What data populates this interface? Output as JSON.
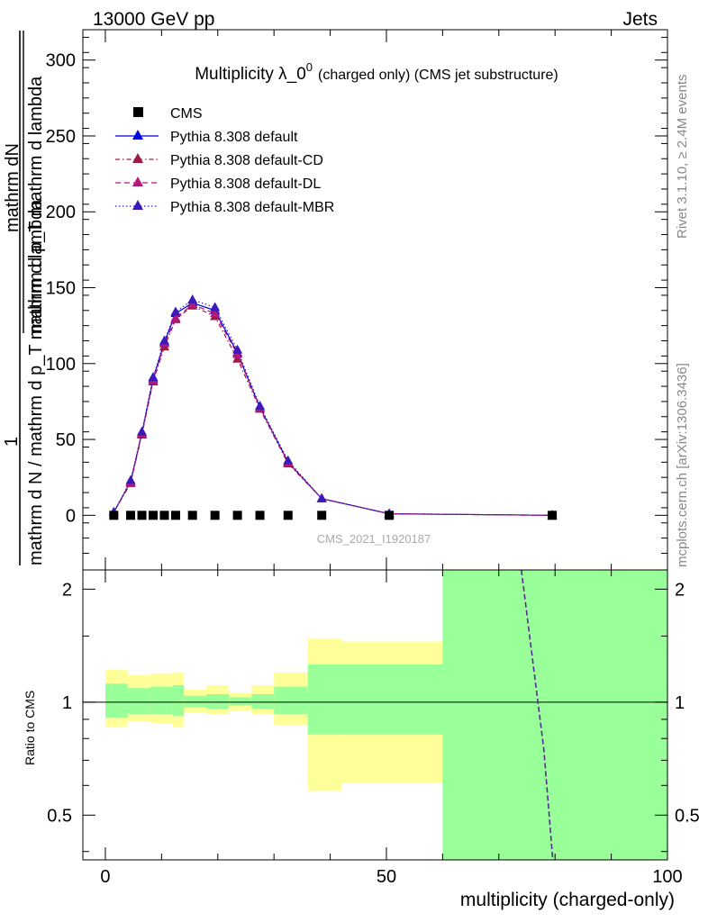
{
  "header": {
    "left": "13000 GeV pp",
    "right": "Jets"
  },
  "side_labels": {
    "rivet": "Rivet 3.1.10, ≥ 2.4M events",
    "mcplots": "mcplots.cern.ch [arXiv:1306.3436]"
  },
  "chart_data": [
    {
      "type": "line",
      "title_main": "Multiplicity λ_0",
      "title_sup": "0",
      "title_sub": "(charged only) (CMS jet substructure)",
      "ylabel_line1": "mathrm dN",
      "ylabel_line2": "mathrm d p_T mathrm d lambda",
      "ylabel_frac_num": "1",
      "ylabel_frac_den": "mathrm d N / mathrm d p_T mathrm d lambda",
      "watermark": "CMS_2021_I1920187",
      "xlim": [
        -4,
        100
      ],
      "ylim": [
        -36,
        320
      ],
      "x_ticks": [
        0,
        50,
        100
      ],
      "y_ticks": [
        0,
        50,
        100,
        150,
        200,
        250,
        300
      ],
      "legend": {
        "position": "top-left",
        "entries": [
          {
            "name": "CMS",
            "color": "#000000",
            "marker": "square",
            "dash": "none"
          },
          {
            "name": "Pythia 8.308 default",
            "color": "#0000e0",
            "marker": "triangle",
            "dash": "solid"
          },
          {
            "name": "Pythia 8.308 default-CD",
            "color": "#9b1b48",
            "marker": "triangle",
            "dash": "dashdot"
          },
          {
            "name": "Pythia 8.308 default-DL",
            "color": "#b5177a",
            "marker": "triangle",
            "dash": "dashed"
          },
          {
            "name": "Pythia 8.308 default-MBR",
            "color": "#3a1ab8",
            "marker": "triangle",
            "dash": "dotted"
          }
        ]
      },
      "cms": {
        "x": [
          1.5,
          4.5,
          6.5,
          8.5,
          10.5,
          12.5,
          15.5,
          19.5,
          23.5,
          27.5,
          32.5,
          38.5,
          50.5,
          79.5
        ],
        "y": [
          0,
          0,
          0,
          0,
          0,
          0,
          0,
          0,
          0,
          0,
          0,
          0,
          0,
          0
        ]
      },
      "series": [
        {
          "name": "Pythia 8.308 default",
          "x": [
            1.5,
            4.5,
            6.5,
            8.5,
            10.5,
            12.5,
            15.5,
            19.5,
            23.5,
            27.5,
            32.5,
            38.5,
            50.5,
            79.5
          ],
          "y": [
            2,
            22,
            54,
            90,
            114,
            133,
            140,
            135,
            107,
            71,
            35,
            11,
            1,
            0
          ]
        },
        {
          "name": "Pythia 8.308 default-CD",
          "x": [
            1.5,
            4.5,
            6.5,
            8.5,
            10.5,
            12.5,
            15.5,
            19.5,
            23.5,
            27.5,
            32.5,
            38.5,
            50.5,
            79.5
          ],
          "y": [
            2,
            21,
            53,
            88,
            111,
            129,
            138,
            131,
            103,
            70,
            34,
            11,
            1,
            0
          ]
        },
        {
          "name": "Pythia 8.308 default-DL",
          "x": [
            1.5,
            4.5,
            6.5,
            8.5,
            10.5,
            12.5,
            15.5,
            19.5,
            23.5,
            27.5,
            32.5,
            38.5,
            50.5,
            79.5
          ],
          "y": [
            2,
            22,
            54,
            89,
            113,
            130,
            139,
            133,
            106,
            71,
            35,
            11,
            1,
            0
          ]
        },
        {
          "name": "Pythia 8.308 default-MBR",
          "x": [
            1.5,
            4.5,
            6.5,
            8.5,
            10.5,
            12.5,
            15.5,
            19.5,
            23.5,
            27.5,
            32.5,
            38.5,
            50.5,
            79.5
          ],
          "y": [
            2,
            23,
            55,
            91,
            115,
            134,
            142,
            137,
            109,
            72,
            36,
            11,
            1,
            0
          ]
        }
      ]
    },
    {
      "type": "area",
      "ylabel": "Ratio to CMS",
      "xlabel": "multiplicity (charged-only)",
      "xlim": [
        -4,
        100
      ],
      "ylim": [
        0.38,
        2.25
      ],
      "x_ticks": [
        0,
        50,
        100
      ],
      "y_ticks": [
        0.5,
        1,
        2
      ],
      "band_colors": {
        "outer": "#ffff99",
        "inner": "#99ff99"
      },
      "bins": [
        {
          "x0": 0,
          "x1": 4,
          "outer": [
            0.86,
            1.22
          ],
          "inner": [
            0.91,
            1.12
          ]
        },
        {
          "x0": 4,
          "x1": 8,
          "outer": [
            0.89,
            1.18
          ],
          "inner": [
            0.93,
            1.09
          ]
        },
        {
          "x0": 8,
          "x1": 12,
          "outer": [
            0.88,
            1.19
          ],
          "inner": [
            0.93,
            1.1
          ]
        },
        {
          "x0": 12,
          "x1": 14,
          "outer": [
            0.86,
            1.2
          ],
          "inner": [
            0.92,
            1.11
          ]
        },
        {
          "x0": 14,
          "x1": 18,
          "outer": [
            0.94,
            1.08
          ],
          "inner": [
            0.97,
            1.04
          ]
        },
        {
          "x0": 18,
          "x1": 22,
          "outer": [
            0.93,
            1.11
          ],
          "inner": [
            0.96,
            1.05
          ]
        },
        {
          "x0": 22,
          "x1": 26,
          "outer": [
            0.95,
            1.06
          ],
          "inner": [
            0.98,
            1.03
          ]
        },
        {
          "x0": 26,
          "x1": 30,
          "outer": [
            0.93,
            1.11
          ],
          "inner": [
            0.96,
            1.05
          ]
        },
        {
          "x0": 30,
          "x1": 36,
          "outer": [
            0.87,
            1.2
          ],
          "inner": [
            0.93,
            1.1
          ]
        },
        {
          "x0": 36,
          "x1": 42,
          "outer": [
            0.58,
            1.48
          ],
          "inner": [
            0.82,
            1.26
          ]
        },
        {
          "x0": 42,
          "x1": 60,
          "outer": [
            0.61,
            1.45
          ],
          "inner": [
            0.82,
            1.26
          ]
        },
        {
          "x0": 60,
          "x1": 100,
          "outer": [
            0.38,
            2.25
          ],
          "inner": [
            0.38,
            2.25
          ]
        }
      ],
      "ratio_line": {
        "x": [
          74,
          78,
          79.6
        ],
        "y": [
          2.25,
          0.75,
          0.38
        ],
        "color": "#5a2a9a"
      }
    }
  ]
}
